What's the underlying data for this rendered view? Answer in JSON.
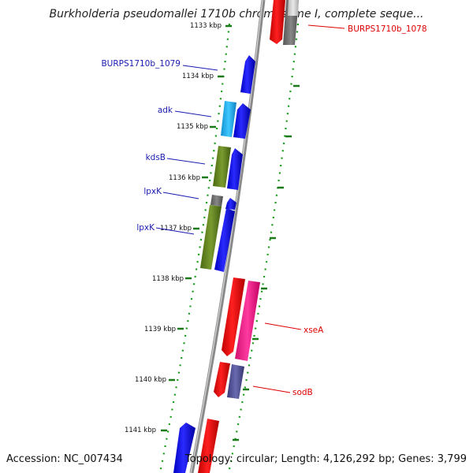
{
  "title": "Burkholderia pseudomallei 1710b chromosome I, complete seque...",
  "footer": {
    "accession": "Accession: NC_007434",
    "summary": "Topology: circular; Length: 4,126,292 bp; Genes: 3,799"
  },
  "ticks": [
    "1133 kbp",
    "1134 kbp",
    "1135 kbp",
    "1136 kbp",
    "1137 kbp",
    "1138 kbp",
    "1139 kbp",
    "1140 kbp",
    "1141 kbp"
  ],
  "genes_left": [
    "BURPS1710b_1079",
    "adk",
    "kdsB",
    "lpxK",
    "lpxK"
  ],
  "genes_right": [
    "BURPS1710b_1078",
    "xseA",
    "sodB"
  ],
  "colors": {
    "blue_label": "#1a1ab0",
    "red_label": "#dd0000",
    "tick_green": "#1a7a1a",
    "backbone": "#8a8a8a"
  }
}
